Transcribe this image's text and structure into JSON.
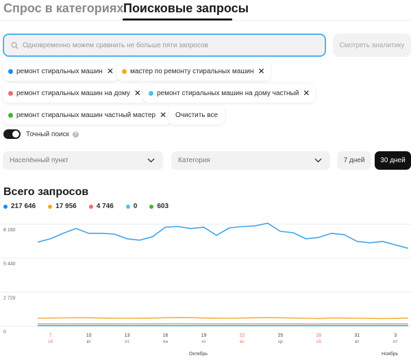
{
  "tabs": [
    {
      "label": "Спрос в категориях",
      "active": false
    },
    {
      "label": "Поисковые запросы",
      "active": true
    }
  ],
  "search": {
    "placeholder": "Одновременно можем сравнить не больше пяти запросов",
    "value": "",
    "icon": "search-icon",
    "border_color": "#4bb3f0"
  },
  "analytics_button": {
    "label": "Смотреть аналитику",
    "disabled": true
  },
  "chips": [
    {
      "label": "ремонт стиральных машин",
      "color": "#1a8cf0"
    },
    {
      "label": "мастер по ремонту стиральных машин",
      "color": "#f5a623"
    },
    {
      "label": "ремонт стиральных машин на дому",
      "color": "#f26b6b"
    },
    {
      "label": "ремонт стиральных машин на дому частный",
      "color": "#4fc0f7"
    },
    {
      "label": "ремонт стиральных машин частный мастер",
      "color": "#3fb62b"
    }
  ],
  "clear_all_label": "Очистить все",
  "remove_icon": "close-icon",
  "exact_search": {
    "label": "Точный поиск",
    "enabled": true,
    "help_icon": "?"
  },
  "filters": {
    "city_placeholder": "Населённый пункт",
    "category_placeholder": "Категория",
    "period_options": [
      {
        "label": "7 дней",
        "selected": false
      },
      {
        "label": "30 дней",
        "selected": true
      }
    ]
  },
  "chart_section": {
    "title": "Всего запросов",
    "totals": [
      {
        "value": "217 646",
        "color": "#1a8cf0"
      },
      {
        "value": "17 956",
        "color": "#f5a623"
      },
      {
        "value": "4 746",
        "color": "#f26b6b"
      },
      {
        "value": "0",
        "color": "#4fc0f7"
      },
      {
        "value": "603",
        "color": "#3fb62b"
      }
    ]
  },
  "chart_data": {
    "type": "line",
    "title": "Всего запросов",
    "xlabel": "",
    "ylabel": "",
    "ylim": [
      0,
      8160
    ],
    "yticks": [
      0,
      2720,
      5440,
      8160
    ],
    "ytick_labels": [
      "0",
      "2 720",
      "5 440",
      "8 160"
    ],
    "grid": true,
    "x": [
      "6 окт",
      "7 окт",
      "8 окт",
      "9 окт",
      "10 окт",
      "11 окт",
      "12 окт",
      "13 окт",
      "14 окт",
      "15 окт",
      "16 окт",
      "17 окт",
      "18 окт",
      "19 окт",
      "20 окт",
      "21 окт",
      "22 окт",
      "23 окт",
      "24 окт",
      "25 окт",
      "26 окт",
      "27 окт",
      "28 окт",
      "29 окт",
      "30 окт",
      "31 окт",
      "1 ноя",
      "2 ноя",
      "3 ноя",
      "4 ноя"
    ],
    "xticks": [
      {
        "day": "7",
        "weekday": "сб",
        "weekend": true,
        "index": 1
      },
      {
        "day": "10",
        "weekday": "вт",
        "weekend": false,
        "index": 4
      },
      {
        "day": "13",
        "weekday": "пт",
        "weekend": false,
        "index": 7
      },
      {
        "day": "16",
        "weekday": "пн",
        "weekend": false,
        "index": 10
      },
      {
        "day": "19",
        "weekday": "чт",
        "weekend": false,
        "index": 13
      },
      {
        "day": "22",
        "weekday": "вс",
        "weekend": true,
        "index": 16
      },
      {
        "day": "25",
        "weekday": "ср",
        "weekend": false,
        "index": 19
      },
      {
        "day": "28",
        "weekday": "сб",
        "weekend": true,
        "index": 22
      },
      {
        "day": "31",
        "weekday": "вт",
        "weekend": false,
        "index": 25
      },
      {
        "day": "3",
        "weekday": "пт",
        "weekend": false,
        "index": 28
      }
    ],
    "months": [
      {
        "label": "Октябрь",
        "index": 13
      },
      {
        "label": "Ноябрь",
        "index": 28
      }
    ],
    "weekend_color": "#f26b6b",
    "series": [
      {
        "name": "ремонт стиральных машин",
        "color": "#3aa3ec",
        "values": [
          6690,
          6960,
          7400,
          7780,
          7400,
          7400,
          7340,
          6960,
          6850,
          7130,
          7890,
          7940,
          7780,
          7890,
          7240,
          7830,
          7940,
          7990,
          8210,
          7560,
          7450,
          6960,
          7070,
          7400,
          7290,
          6750,
          6640,
          6750,
          6470,
          6200
        ]
      },
      {
        "name": "мастер по ремонту стиральных машин",
        "color": "#f5b041",
        "values": [
          600,
          620,
          630,
          640,
          640,
          620,
          610,
          600,
          610,
          620,
          640,
          660,
          650,
          620,
          610,
          600,
          620,
          640,
          650,
          640,
          620,
          600,
          580,
          620,
          620,
          600,
          590,
          580,
          590,
          620
        ]
      },
      {
        "name": "ремонт стиральных машин на дому",
        "color": "#f7a1a1",
        "values": [
          160,
          160,
          165,
          160,
          160,
          155,
          160,
          165,
          165,
          160,
          170,
          180,
          170,
          160,
          160,
          155,
          160,
          165,
          160,
          160,
          160,
          155,
          155,
          160,
          160,
          160,
          160,
          155,
          160,
          160
        ]
      },
      {
        "name": "ремонт стиральных машин на дому частный",
        "color": "#4fc0f7",
        "values": [
          0,
          0,
          0,
          0,
          0,
          0,
          0,
          0,
          0,
          0,
          0,
          0,
          0,
          0,
          0,
          0,
          0,
          0,
          0,
          0,
          0,
          0,
          0,
          0,
          0,
          0,
          0,
          0,
          0,
          0
        ]
      },
      {
        "name": "ремонт стиральных машин частный мастер",
        "color": "#3fb62b",
        "values": [
          20,
          20,
          20,
          20,
          20,
          20,
          20,
          20,
          20,
          20,
          20,
          20,
          20,
          20,
          20,
          20,
          20,
          20,
          20,
          20,
          20,
          20,
          20,
          20,
          20,
          20,
          20,
          20,
          20,
          20
        ]
      }
    ]
  }
}
